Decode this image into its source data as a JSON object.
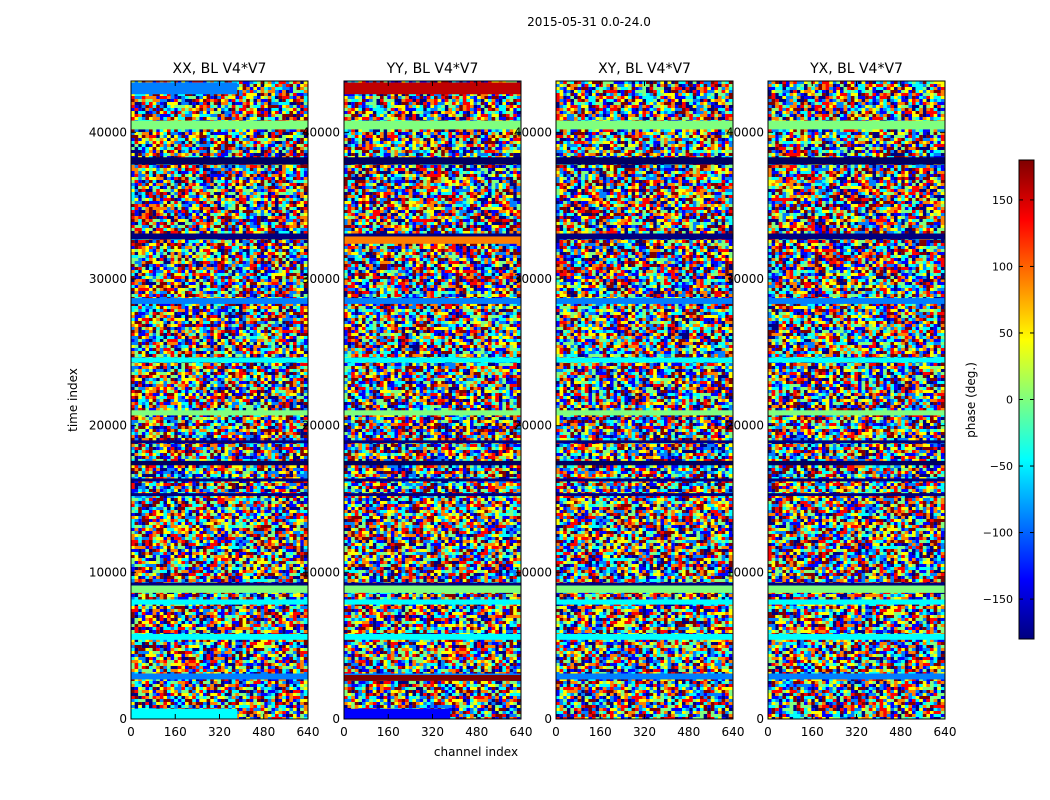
{
  "chart_data": {
    "type": "heatmap",
    "title": "2015-05-31 0.0-24.0",
    "xlabel": "channel index",
    "ylabel": "time index",
    "xlim": [
      0,
      640
    ],
    "ylim": [
      0,
      43500
    ],
    "x_ticks": [
      0,
      160,
      320,
      480,
      640
    ],
    "y_ticks": [
      0,
      10000,
      20000,
      30000,
      40000
    ],
    "panels": [
      {
        "title": "XX, BL V4*V7"
      },
      {
        "title": "YY, BL V4*V7"
      },
      {
        "title": "XY, BL V4*V7"
      },
      {
        "title": "YX, BL V4*V7"
      }
    ],
    "colorbar": {
      "label": "phase (deg.)",
      "colormap": "jet",
      "range": [
        -180,
        180
      ],
      "ticks": [
        -150,
        -100,
        -50,
        0,
        50,
        100,
        150
      ],
      "tick_labels": [
        "−150",
        "−100",
        "−50",
        "0",
        "50",
        "100",
        "150"
      ],
      "colors": [
        "#00007f",
        "#0000ff",
        "#007fff",
        "#00ffff",
        "#7fff7f",
        "#ffff00",
        "#ff7f00",
        "#ff0000",
        "#7f0000"
      ]
    },
    "grid": false
  }
}
